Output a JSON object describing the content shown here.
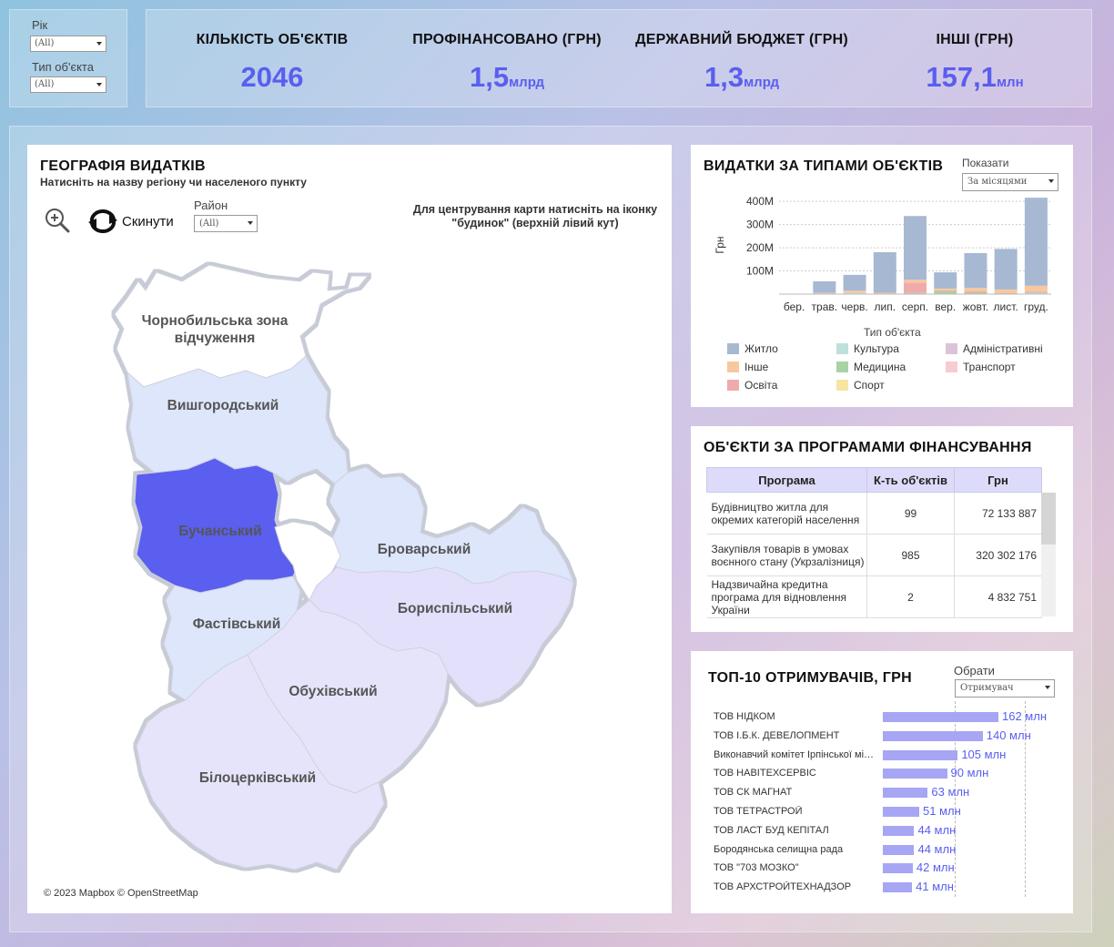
{
  "filters": {
    "year_label": "Рік",
    "year_value": "(All)",
    "type_label": "Тип об'єкта",
    "type_value": "(All)"
  },
  "kpis": [
    {
      "title": "КІЛЬКІСТЬ ОБ'ЄКТІВ",
      "value": "2046",
      "unit": ""
    },
    {
      "title": "ПРОФІНАНСОВАНО (ГРН)",
      "value": "1,5",
      "unit": "млрд"
    },
    {
      "title": "ДЕРЖАВНИЙ БЮДЖЕТ (ГРН)",
      "value": "1,3",
      "unit": "млрд"
    },
    {
      "title": "ІНШІ (ГРН)",
      "value": "157,1",
      "unit": "млн"
    }
  ],
  "map": {
    "title": "ГЕОГРАФІЯ ВИДАТКІВ",
    "subtitle": "Натисніть на назву регіону чи населеного пункту",
    "reset_label": "Скинути",
    "district_label": "Район",
    "district_value": "(All)",
    "hint": "Для центрування карти натисніть на іконку \"будинок\" (верхній лівий кут)",
    "copyright": "© 2023 Mapbox  © OpenStreetMap",
    "regions": {
      "chornobyl": [
        "Чорнобильська зона",
        "відчуження"
      ],
      "vyshhorod": "Вишгородський",
      "bucha": "Бучанський",
      "brovary": "Броварський",
      "boryspil": "Бориспільський",
      "fastiv": "Фастівський",
      "obukhiv": "Обухівський",
      "bila_tserkva": "Білоцерківський"
    },
    "colors": {
      "selected": "#5a5ef0",
      "light": "#dde6fb",
      "lighter": "#e2e0fb",
      "palest": "#e6e4fa",
      "exclusion": "#ffffff"
    }
  },
  "types_card": {
    "title": "ВИДАТКИ ЗА ТИПАМИ ОБ'ЄКТІВ",
    "show_label": "Показати",
    "show_value": "За місяцями",
    "legend_title": "Тип об'єкта",
    "legend": [
      {
        "name": "Житло",
        "color": "#a7b8d3"
      },
      {
        "name": "Культура",
        "color": "#bfe0dd"
      },
      {
        "name": "Адміністративні",
        "color": "#dbc4d8"
      },
      {
        "name": "Інше",
        "color": "#f6c89e"
      },
      {
        "name": "Медицина",
        "color": "#a9d3a4"
      },
      {
        "name": "Транспорт",
        "color": "#f8cbd3"
      },
      {
        "name": "Освіта",
        "color": "#efabab"
      },
      {
        "name": "Спорт",
        "color": "#f6e6a2"
      }
    ]
  },
  "chart_data": {
    "type": "bar",
    "stacked": true,
    "categories": [
      "бер.",
      "трав.",
      "черв.",
      "лип.",
      "серп.",
      "вер.",
      "жовт.",
      "лист.",
      "груд."
    ],
    "ylabel": "Грн",
    "yticks": [
      "100M",
      "200M",
      "300M",
      "400M"
    ],
    "ylim": [
      0,
      440
    ],
    "grid": true,
    "series": [
      {
        "name": "Житло",
        "color": "#a7b8d3",
        "values": [
          2,
          50,
          68,
          175,
          275,
          70,
          150,
          175,
          380
        ]
      },
      {
        "name": "Інше",
        "color": "#f6c89e",
        "values": [
          0,
          3,
          8,
          4,
          12,
          8,
          15,
          15,
          25
        ]
      },
      {
        "name": "Освіта",
        "color": "#efabab",
        "values": [
          0,
          2,
          2,
          2,
          45,
          4,
          6,
          5,
          5
        ]
      },
      {
        "name": "Медицина",
        "color": "#a9d3a4",
        "values": [
          0,
          0,
          2,
          0,
          3,
          12,
          4,
          0,
          2
        ]
      },
      {
        "name": "Культура",
        "color": "#bfe0dd",
        "values": [
          0,
          0,
          3,
          0,
          2,
          0,
          2,
          0,
          4
        ]
      }
    ]
  },
  "programs": {
    "title": "ОБ'ЄКТИ ЗА  ПРОГРАМАМИ ФІНАНСУВАННЯ",
    "columns": [
      "Програма",
      "К-ть об'єктів",
      "Грн"
    ],
    "rows": [
      {
        "name": "Будівництво житла для окремих категорій населення",
        "count": "99",
        "amount": "72 133 887"
      },
      {
        "name": "Закупівля товарів в умовах воєнного стану (Укрзалізниця)",
        "count": "985",
        "amount": "320 302 176"
      },
      {
        "name": "Надзвичайна кредитна програма для відновлення України",
        "count": "2",
        "amount": "4 832 751"
      }
    ]
  },
  "top10": {
    "title": "ТОП-10 ОТРИМУВАЧІВ, ГРН",
    "select_label": "Обрати",
    "select_value": "Отримувач",
    "max": 162,
    "items": [
      {
        "name": "ТОВ НІДКОМ",
        "value": 162,
        "label": "162 млн"
      },
      {
        "name": "ТОВ І.Б.К. ДЕВЕЛОПМЕНТ",
        "value": 140,
        "label": "140 млн"
      },
      {
        "name": "Виконавчий комітет Ірпінської міської ради",
        "value": 105,
        "label": "105 млн"
      },
      {
        "name": "ТОВ НАВІТЕХСЕРВІС",
        "value": 90,
        "label": "90 млн"
      },
      {
        "name": "ТОВ СК МАГНАТ",
        "value": 63,
        "label": "63 млн"
      },
      {
        "name": "ТОВ ТЕТРАСТРОЙ",
        "value": 51,
        "label": "51 млн"
      },
      {
        "name": "ТОВ ЛАСТ БУД КЕПІТАЛ",
        "value": 44,
        "label": "44 млн"
      },
      {
        "name": "Бородянська селищна рада",
        "value": 44,
        "label": "44 млн"
      },
      {
        "name": "ТОВ \"703 МОЗКО\"",
        "value": 42,
        "label": "42 млн"
      },
      {
        "name": "ТОВ АРХСТРОЙТЕХНАДЗОР",
        "value": 41,
        "label": "41 млн"
      }
    ]
  }
}
